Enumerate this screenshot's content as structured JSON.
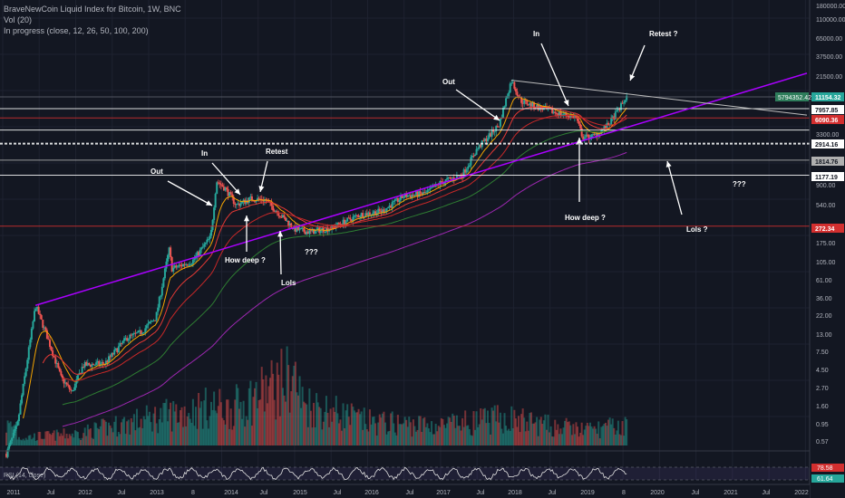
{
  "legend": {
    "title": "BraveNewCoin Liquid Index for Bitcoin, 1W, BNC",
    "vol": "Vol (20)",
    "ma": "In progress (close, 12, 26, 50, 100, 200)",
    "rsi": "RSI (14, close)"
  },
  "chart_data": {
    "type": "candlestick",
    "y_scale": "log",
    "x_axis_labels": [
      "2011",
      "Jul",
      "2012",
      "Jul",
      "2013",
      "8",
      "2014",
      "Jul",
      "2015",
      "Jul",
      "2016",
      "Jul",
      "2017",
      "Jul",
      "2018",
      "Jul",
      "2019",
      "8",
      "2020",
      "Jul",
      "2021",
      "Jul",
      "2022"
    ],
    "y_axis_labels": [
      "180000.00",
      "110000.00",
      "65000.00",
      "37500.00",
      "21500.00",
      "3300.00",
      "900.00",
      "540.00",
      "175.00",
      "105.00",
      "61.00",
      "36.00",
      "22.00",
      "13.00",
      "7.50",
      "4.50",
      "2.70",
      "1.60",
      "0.95",
      "0.57"
    ],
    "price_labels": [
      {
        "text": "5794352.42K",
        "color": "#26a69a"
      },
      {
        "text": "11154.32",
        "color": "#26a69a"
      },
      {
        "text": "7957.85",
        "color": "#ffffff"
      },
      {
        "text": "6090.36",
        "color": "#d32f2f"
      },
      {
        "text": "2914.16",
        "color": "#ffffff"
      },
      {
        "text": "1814.76",
        "color": "#b0b0b0"
      },
      {
        "text": "1177.19",
        "color": "#ffffff"
      },
      {
        "text": "272.34",
        "color": "#d32f2f"
      }
    ],
    "rsi_labels": [
      {
        "text": "78.58",
        "color": "#d32f2f"
      },
      {
        "text": "61.64",
        "color": "#26a69a"
      }
    ],
    "annotations": [
      "Out",
      "In",
      "Retest",
      "How deep ?",
      "Lols",
      "???",
      "Out",
      "In",
      "Retest ?",
      "How deep ?",
      "Lols ?",
      "???"
    ],
    "price_path": [
      [
        2011.0,
        0.3
      ],
      [
        2011.2,
        0.9
      ],
      [
        2011.45,
        28
      ],
      [
        2011.6,
        12
      ],
      [
        2011.8,
        3.5
      ],
      [
        2011.95,
        2.3
      ],
      [
        2012.1,
        5
      ],
      [
        2012.4,
        5.3
      ],
      [
        2012.7,
        11
      ],
      [
        2012.9,
        13
      ],
      [
        2013.1,
        20
      ],
      [
        2013.28,
        140
      ],
      [
        2013.32,
        80
      ],
      [
        2013.6,
        100
      ],
      [
        2013.85,
        200
      ],
      [
        2013.93,
        1000
      ],
      [
        2014.05,
        800
      ],
      [
        2014.2,
        500
      ],
      [
        2014.4,
        600
      ],
      [
        2014.6,
        580
      ],
      [
        2014.8,
        380
      ],
      [
        2015.0,
        250
      ],
      [
        2015.2,
        230
      ],
      [
        2015.5,
        260
      ],
      [
        2015.9,
        380
      ],
      [
        2016.2,
        420
      ],
      [
        2016.5,
        650
      ],
      [
        2016.8,
        700
      ],
      [
        2017.0,
        950
      ],
      [
        2017.3,
        1200
      ],
      [
        2017.5,
        2500
      ],
      [
        2017.8,
        5000
      ],
      [
        2017.97,
        18000
      ],
      [
        2018.1,
        10000
      ],
      [
        2018.3,
        8500
      ],
      [
        2018.6,
        7000
      ],
      [
        2018.85,
        6300
      ],
      [
        2018.95,
        3500
      ],
      [
        2019.1,
        3600
      ],
      [
        2019.3,
        5000
      ],
      [
        2019.45,
        8000
      ],
      [
        2019.55,
        11154
      ]
    ],
    "volume_path": [
      [
        2011.2,
        0.1
      ],
      [
        2012.0,
        0.15
      ],
      [
        2013.3,
        0.4
      ],
      [
        2013.9,
        0.5
      ],
      [
        2014.1,
        0.45
      ],
      [
        2014.6,
        0.7
      ],
      [
        2015.0,
        0.9
      ],
      [
        2015.1,
        0.55
      ],
      [
        2016.0,
        0.3
      ],
      [
        2017.0,
        0.25
      ],
      [
        2017.9,
        0.35
      ],
      [
        2018.5,
        0.25
      ],
      [
        2019.0,
        0.2
      ],
      [
        2019.5,
        0.25
      ]
    ]
  },
  "colors": {
    "up": "#26a69a",
    "down": "#ef5350",
    "ma_fast": "#f7a600",
    "ma_mid": "#e53935",
    "ma_slow": "#2e7d32",
    "ma_200": "#9c27b0",
    "trend": "#aa00ff",
    "grid": "#1e2230"
  }
}
